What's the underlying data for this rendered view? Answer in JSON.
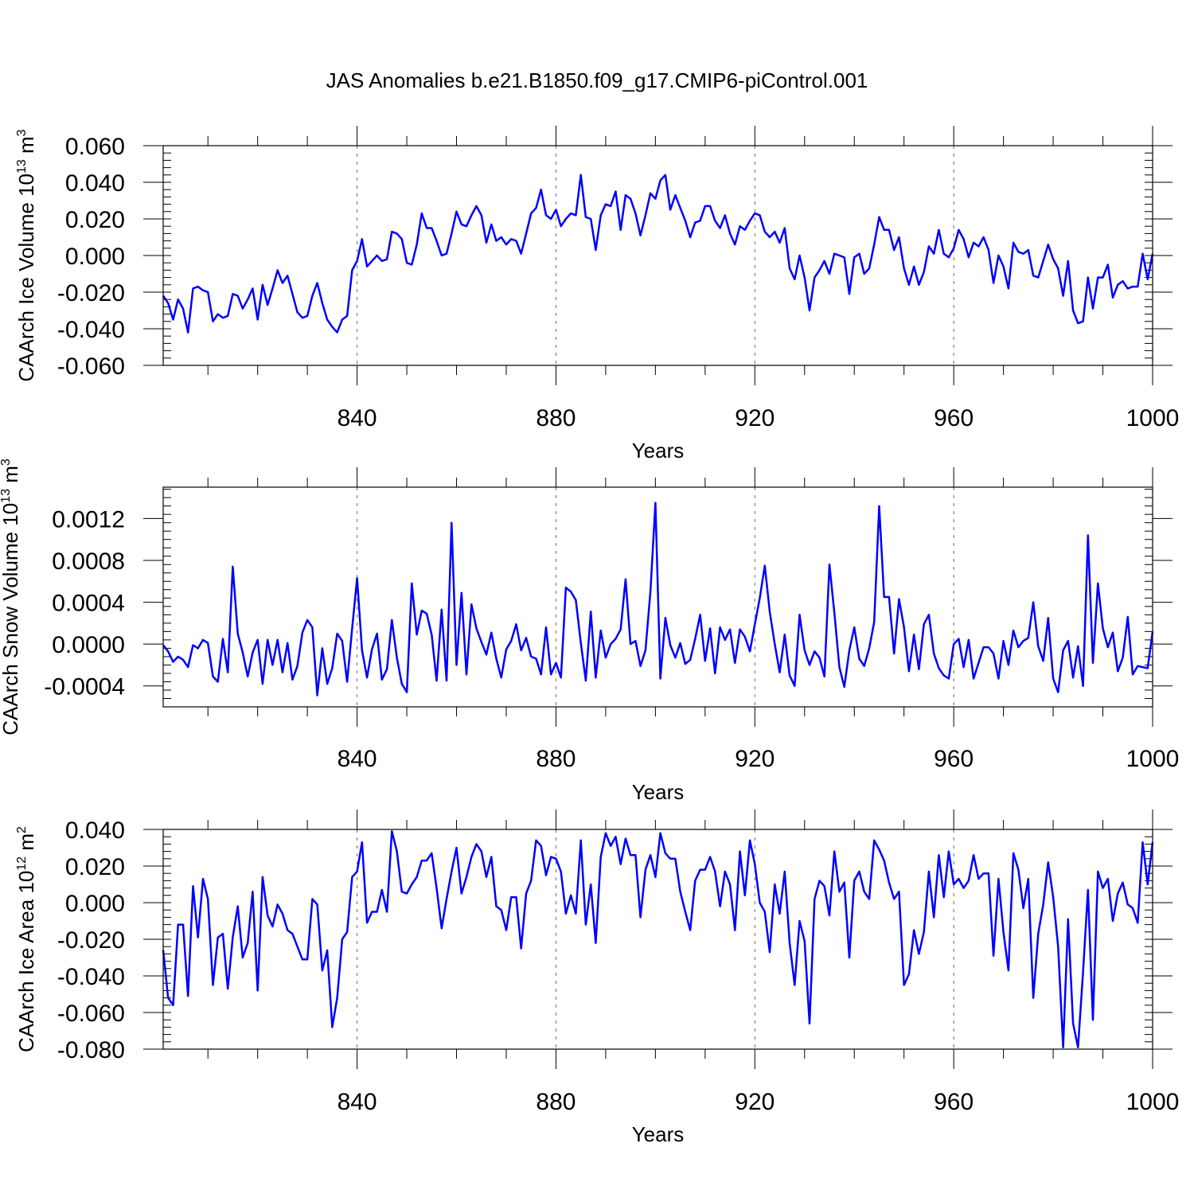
{
  "title": "JAS Anomalies b.e21.B1850.f09_g17.CMIP6-piControl.001",
  "colors": {
    "line": "#0000ff",
    "axes": "#000000",
    "gridline": "#808080"
  },
  "chart_data": [
    {
      "type": "line",
      "name": "ice-volume",
      "ylabel": {
        "base": "CAArch Ice Volume 10",
        "exp": "13",
        "unit": " m",
        "unit_exp": "3"
      },
      "xlabel": "Years",
      "xlim": [
        801,
        1000
      ],
      "ylim": [
        -0.06,
        0.06
      ],
      "xticks": [
        840,
        880,
        920,
        960,
        1000
      ],
      "xtick_labels": [
        "840",
        "880",
        "920",
        "960",
        "1000"
      ],
      "yticks": [
        -0.06,
        -0.04,
        -0.02,
        0.0,
        0.02,
        0.04,
        0.06
      ],
      "ytick_labels": [
        "-0.060",
        "-0.040",
        "-0.020",
        "0.000",
        "0.020",
        "0.040",
        "0.060"
      ],
      "x_start": 801,
      "values": [
        -0.022,
        -0.026,
        -0.035,
        -0.024,
        -0.029,
        -0.042,
        -0.018,
        -0.017,
        -0.019,
        -0.02,
        -0.036,
        -0.032,
        -0.034,
        -0.033,
        -0.021,
        -0.022,
        -0.029,
        -0.024,
        -0.018,
        -0.035,
        -0.016,
        -0.027,
        -0.018,
        -0.008,
        -0.015,
        -0.011,
        -0.021,
        -0.031,
        -0.034,
        -0.033,
        -0.022,
        -0.015,
        -0.026,
        -0.035,
        -0.039,
        -0.042,
        -0.035,
        -0.033,
        -0.008,
        -0.003,
        0.009,
        -0.006,
        -0.003,
        0.0,
        -0.003,
        -0.002,
        0.013,
        0.012,
        0.009,
        -0.004,
        -0.005,
        0.006,
        0.023,
        0.015,
        0.015,
        0.008,
        0.0,
        0.001,
        0.012,
        0.024,
        0.017,
        0.016,
        0.022,
        0.027,
        0.022,
        0.007,
        0.017,
        0.008,
        0.01,
        0.006,
        0.009,
        0.008,
        0.001,
        0.012,
        0.023,
        0.026,
        0.036,
        0.022,
        0.02,
        0.025,
        0.016,
        0.02,
        0.023,
        0.022,
        0.044,
        0.021,
        0.02,
        0.003,
        0.022,
        0.028,
        0.027,
        0.035,
        0.014,
        0.033,
        0.031,
        0.023,
        0.011,
        0.022,
        0.034,
        0.031,
        0.041,
        0.044,
        0.025,
        0.033,
        0.026,
        0.019,
        0.01,
        0.018,
        0.019,
        0.027,
        0.027,
        0.019,
        0.015,
        0.022,
        0.012,
        0.006,
        0.016,
        0.014,
        0.019,
        0.023,
        0.022,
        0.013,
        0.01,
        0.013,
        0.007,
        0.015,
        -0.007,
        -0.013,
        0.0,
        -0.012,
        -0.03,
        -0.012,
        -0.008,
        -0.003,
        -0.01,
        0.001,
        0.0,
        -0.001,
        -0.021,
        -0.001,
        0.001,
        -0.01,
        -0.007,
        0.006,
        0.021,
        0.014,
        0.014,
        0.003,
        0.01,
        -0.007,
        -0.016,
        -0.006,
        -0.016,
        -0.009,
        0.005,
        0.001,
        0.014,
        0.001,
        -0.001,
        0.004,
        0.014,
        0.009,
        -0.001,
        0.007,
        0.005,
        0.01,
        0.003,
        -0.015,
        0.0,
        -0.006,
        -0.018,
        0.007,
        0.002,
        0.001,
        0.003,
        -0.011,
        -0.012,
        -0.003,
        0.006,
        -0.002,
        -0.007,
        -0.022,
        -0.003,
        -0.03,
        -0.037,
        -0.036,
        -0.012,
        -0.029,
        -0.012,
        -0.012,
        -0.005,
        -0.023,
        -0.016,
        -0.014,
        -0.018,
        -0.017,
        -0.017,
        0.001,
        -0.013,
        0.001
      ]
    },
    {
      "type": "line",
      "name": "snow-volume",
      "ylabel": {
        "base": "CAArch Snow Volume 10",
        "exp": "13",
        "unit": " m",
        "unit_exp": "3"
      },
      "xlabel": "Years",
      "xlim": [
        801,
        1000
      ],
      "ylim": [
        -0.0006,
        0.0015
      ],
      "xticks": [
        840,
        880,
        920,
        960,
        1000
      ],
      "xtick_labels": [
        "840",
        "880",
        "920",
        "960",
        "1000"
      ],
      "yticks": [
        -0.0004,
        0.0,
        0.0004,
        0.0008,
        0.0012
      ],
      "ytick_labels": [
        "-0.0004",
        "0.0000",
        "0.0004",
        "0.0008",
        "0.0012"
      ],
      "x_start": 801,
      "values": [
        -1e-05,
        -7e-05,
        -0.00017,
        -0.00012,
        -0.00015,
        -0.00022,
        -1e-05,
        -4e-05,
        4e-05,
        1e-05,
        -0.00031,
        -0.00036,
        5e-05,
        -0.00027,
        0.00074,
        0.0001,
        -8e-05,
        -0.00031,
        -8e-05,
        4e-05,
        -0.00038,
        4e-05,
        -0.0002,
        4e-05,
        -0.00027,
        1e-05,
        -0.00034,
        -0.00021,
        0.00011,
        0.00023,
        0.00016,
        -0.00049,
        -4e-05,
        -0.00038,
        -0.00023,
        0.0001,
        3e-05,
        -0.00036,
        0.00015,
        0.00063,
        -6e-05,
        -0.00032,
        -5e-05,
        0.0001,
        -0.00034,
        -0.00024,
        0.00023,
        -0.00013,
        -0.00038,
        -0.00046,
        0.00058,
        9e-05,
        0.00032,
        0.00029,
        9e-05,
        -0.00035,
        0.00033,
        -0.00035,
        0.00116,
        -0.0002,
        0.00049,
        -0.00029,
        0.00038,
        0.00015,
        2e-05,
        -0.0001,
        0.00011,
        -0.00014,
        -0.00032,
        -5e-05,
        3e-05,
        0.00019,
        -6e-05,
        6e-05,
        -0.00012,
        -0.00014,
        -0.00029,
        0.00016,
        -0.00029,
        -0.00018,
        -0.00032,
        0.00054,
        0.0005,
        0.00042,
        1e-05,
        -0.00035,
        0.00031,
        -0.00032,
        0.00013,
        -0.00013,
        0.0,
        5e-05,
        0.00014,
        0.00062,
        0.0,
        3e-05,
        -0.00021,
        -6e-05,
        0.0005,
        0.00135,
        -0.00033,
        0.00025,
        -1e-05,
        -0.00013,
        1e-05,
        -0.00019,
        -0.00015,
        5e-05,
        0.00028,
        -0.00016,
        0.00015,
        -0.00028,
        0.00016,
        4e-05,
        0.00014,
        -0.00018,
        0.00014,
        7e-05,
        -7e-05,
        0.00019,
        0.00044,
        0.00075,
        0.00031,
        0.0,
        -0.00027,
        9e-05,
        -0.0003,
        -0.0004,
        0.00028,
        -6e-05,
        -0.0002,
        -7e-05,
        -0.00013,
        -0.00031,
        0.00076,
        0.0003,
        -0.00022,
        -0.00041,
        -6e-05,
        0.00016,
        -0.00014,
        -0.00021,
        -4e-05,
        0.00021,
        0.00132,
        0.00045,
        0.00045,
        -9e-05,
        0.00043,
        0.00016,
        -0.00026,
        9e-05,
        -0.00024,
        0.00019,
        0.00028,
        -9e-05,
        -0.00023,
        -0.0003,
        -0.00033,
        0.0,
        5e-05,
        -0.00022,
        4e-05,
        -0.00033,
        -0.00018,
        -3e-05,
        -3e-05,
        -9e-05,
        -0.00033,
        3e-05,
        -0.0002,
        0.00013,
        -3e-05,
        3e-05,
        6e-05,
        0.0004,
        -2e-05,
        -0.00016,
        0.00025,
        -0.00033,
        -0.00046,
        -6e-05,
        3e-05,
        -0.00032,
        -2e-05,
        -0.0004,
        0.00104,
        -0.00018,
        0.00058,
        0.00015,
        -3e-05,
        0.00011,
        -0.00026,
        -0.00013,
        0.00026,
        -0.00029,
        -0.00021,
        -0.00022,
        -0.00023,
        0.00012
      ]
    },
    {
      "type": "line",
      "name": "ice-area",
      "ylabel": {
        "base": "CAArch Ice Area 10",
        "exp": "12",
        "unit": " m",
        "unit_exp": "2"
      },
      "xlabel": "Years",
      "xlim": [
        801,
        1000
      ],
      "ylim": [
        -0.08,
        0.04
      ],
      "xticks": [
        840,
        880,
        920,
        960,
        1000
      ],
      "xtick_labels": [
        "840",
        "880",
        "920",
        "960",
        "1000"
      ],
      "yticks": [
        -0.08,
        -0.06,
        -0.04,
        -0.02,
        0.0,
        0.02,
        0.04
      ],
      "ytick_labels": [
        "-0.080",
        "-0.060",
        "-0.040",
        "-0.020",
        "0.000",
        "0.020",
        "0.040"
      ],
      "x_start": 801,
      "values": [
        -0.026,
        -0.052,
        -0.056,
        -0.012,
        -0.012,
        -0.051,
        0.009,
        -0.019,
        0.013,
        0.002,
        -0.045,
        -0.019,
        -0.017,
        -0.047,
        -0.019,
        -0.002,
        -0.03,
        -0.022,
        0.006,
        -0.048,
        0.014,
        -0.007,
        -0.013,
        -0.001,
        -0.006,
        -0.015,
        -0.017,
        -0.024,
        -0.031,
        -0.031,
        0.002,
        -0.001,
        -0.037,
        -0.026,
        -0.068,
        -0.052,
        -0.02,
        -0.016,
        0.014,
        0.017,
        0.033,
        -0.011,
        -0.005,
        -0.005,
        0.007,
        -0.005,
        0.039,
        0.028,
        0.006,
        0.005,
        0.01,
        0.014,
        0.023,
        0.023,
        0.027,
        0.008,
        -0.014,
        0.002,
        0.017,
        0.03,
        0.005,
        0.014,
        0.025,
        0.032,
        0.028,
        0.014,
        0.025,
        -0.002,
        -0.004,
        -0.015,
        0.003,
        0.003,
        -0.025,
        0.005,
        0.012,
        0.034,
        0.031,
        0.015,
        0.025,
        0.024,
        0.017,
        -0.006,
        0.004,
        -0.006,
        0.034,
        -0.012,
        0.01,
        -0.022,
        0.025,
        0.038,
        0.031,
        0.036,
        0.021,
        0.035,
        0.026,
        0.026,
        -0.008,
        0.018,
        0.026,
        0.014,
        0.038,
        0.027,
        0.024,
        0.024,
        0.006,
        -0.005,
        -0.015,
        0.012,
        0.018,
        0.018,
        0.025,
        0.017,
        -0.002,
        0.017,
        0.01,
        -0.015,
        0.028,
        0.004,
        0.034,
        0.021,
        0.0,
        -0.005,
        -0.027,
        0.01,
        -0.006,
        0.017,
        -0.022,
        -0.045,
        -0.01,
        -0.021,
        -0.066,
        0.002,
        0.012,
        0.009,
        -0.007,
        0.028,
        0.006,
        0.011,
        -0.03,
        0.012,
        0.017,
        0.006,
        0.002,
        0.034,
        0.029,
        0.023,
        0.011,
        0.002,
        0.006,
        -0.045,
        -0.039,
        -0.015,
        -0.028,
        -0.016,
        0.017,
        -0.008,
        0.026,
        0.003,
        0.028,
        0.01,
        0.013,
        0.008,
        0.012,
        0.026,
        0.013,
        0.016,
        0.016,
        -0.029,
        0.013,
        -0.016,
        -0.037,
        0.027,
        0.018,
        -0.003,
        0.013,
        -0.052,
        -0.017,
        -0.001,
        0.022,
        0.003,
        -0.024,
        -0.079,
        -0.009,
        -0.066,
        -0.079,
        -0.038,
        0.007,
        -0.064,
        0.017,
        0.008,
        0.013,
        -0.01,
        0.005,
        0.011,
        -0.001,
        -0.003,
        -0.011,
        0.033,
        0.01,
        0.033
      ]
    }
  ]
}
